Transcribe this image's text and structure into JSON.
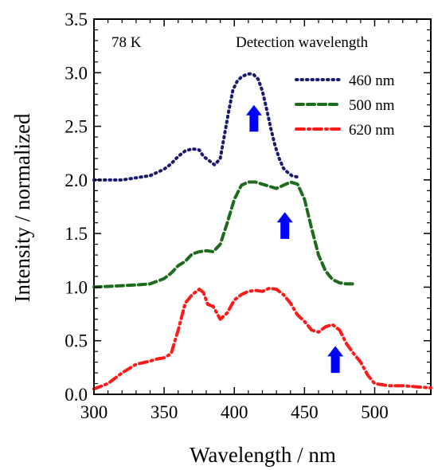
{
  "chart_data": {
    "type": "line",
    "xlabel": "Wavelength / nm",
    "ylabel": "Intensity / normalized",
    "xlim": [
      300,
      540
    ],
    "ylim": [
      0.0,
      3.5
    ],
    "x_ticks": [
      300,
      350,
      400,
      450,
      500
    ],
    "y_ticks": [
      0.0,
      0.5,
      1.0,
      1.5,
      2.0,
      2.5,
      3.0,
      3.5
    ],
    "x_tick_labels": [
      "300",
      "350",
      "400",
      "450",
      "500"
    ],
    "y_tick_labels": [
      "0.0",
      "0.5",
      "1.0",
      "1.5",
      "2.0",
      "2.5",
      "3.0",
      "3.5"
    ],
    "annotations": {
      "temperature": "78 K",
      "legend_title": "Detection wavelength"
    },
    "legend_placement": "top-right",
    "grid": false,
    "series": [
      {
        "name": "460 nm",
        "color": "#1a1a6e",
        "style": "dotted",
        "x": [
          300,
          310,
          320,
          330,
          340,
          350,
          355,
          360,
          365,
          370,
          375,
          378,
          382,
          386,
          390,
          393,
          396,
          399,
          402,
          405,
          408,
          411,
          414,
          417,
          420,
          423,
          426,
          429,
          432,
          435,
          438,
          441,
          444,
          447
        ],
        "y": [
          2.0,
          2.0,
          2.0,
          2.02,
          2.04,
          2.1,
          2.15,
          2.22,
          2.27,
          2.29,
          2.28,
          2.22,
          2.18,
          2.14,
          2.2,
          2.42,
          2.64,
          2.84,
          2.92,
          2.96,
          2.98,
          2.99,
          2.98,
          2.94,
          2.83,
          2.66,
          2.48,
          2.32,
          2.2,
          2.11,
          2.07,
          2.04,
          2.03,
          2.02
        ]
      },
      {
        "name": "500 nm",
        "color": "#1e6b1e",
        "style": "dashed",
        "x": [
          300,
          315,
          330,
          340,
          350,
          355,
          360,
          365,
          370,
          375,
          380,
          385,
          390,
          395,
          400,
          405,
          410,
          415,
          420,
          425,
          430,
          435,
          440,
          445,
          450,
          455,
          460,
          465,
          470,
          475,
          480,
          485
        ],
        "y": [
          1.0,
          1.01,
          1.02,
          1.03,
          1.08,
          1.13,
          1.2,
          1.24,
          1.31,
          1.33,
          1.34,
          1.33,
          1.4,
          1.6,
          1.82,
          1.95,
          1.98,
          1.98,
          1.96,
          1.94,
          1.92,
          1.95,
          1.98,
          1.96,
          1.82,
          1.55,
          1.3,
          1.15,
          1.07,
          1.04,
          1.03,
          1.03
        ]
      },
      {
        "name": "620 nm",
        "color": "#ff1a1a",
        "style": "dash-dot",
        "x": [
          300,
          310,
          320,
          330,
          340,
          345,
          350,
          355,
          360,
          365,
          370,
          375,
          378,
          381,
          385,
          390,
          395,
          400,
          405,
          410,
          415,
          420,
          425,
          430,
          435,
          440,
          445,
          450,
          455,
          460,
          465,
          470,
          475,
          480,
          485,
          490,
          495,
          500,
          510,
          520,
          530,
          540
        ],
        "y": [
          0.05,
          0.1,
          0.2,
          0.28,
          0.31,
          0.33,
          0.34,
          0.38,
          0.6,
          0.85,
          0.93,
          0.98,
          0.95,
          0.84,
          0.82,
          0.7,
          0.76,
          0.88,
          0.93,
          0.96,
          0.97,
          0.96,
          0.99,
          0.98,
          0.93,
          0.85,
          0.74,
          0.68,
          0.6,
          0.58,
          0.63,
          0.65,
          0.6,
          0.47,
          0.38,
          0.3,
          0.18,
          0.1,
          0.08,
          0.08,
          0.07,
          0.06
        ]
      }
    ],
    "arrows": {
      "color": "#0000ff",
      "direction": "up",
      "x": [
        414,
        436,
        472
      ],
      "y_tip": [
        2.7,
        1.7,
        0.45
      ],
      "y_base": [
        2.45,
        1.45,
        0.2
      ]
    }
  }
}
